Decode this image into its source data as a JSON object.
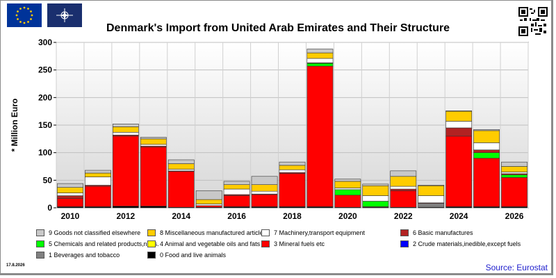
{
  "header": {
    "eu_flag": "eu-flag",
    "nato_flag": "nato-flag",
    "qr": "qr-code"
  },
  "footer": {
    "date": "17.8.2026",
    "source": "Source: Eurostat"
  },
  "chart_data": {
    "type": "bar",
    "stacked": true,
    "title": "Denmark's Import from United Arab Emirates and Their Structure",
    "ylabel": "* Million Euro",
    "xlabel": "",
    "ylim": [
      0,
      300
    ],
    "yticks": [
      0,
      50,
      100,
      150,
      200,
      250,
      300
    ],
    "grid": true,
    "legend_position": "bottom",
    "categories": [
      "2010",
      "2011",
      "2012",
      "2013",
      "2014",
      "2015",
      "2016",
      "2017",
      "2018",
      "2019",
      "2020",
      "2021",
      "2022",
      "2023",
      "2024",
      "2025",
      "2026"
    ],
    "xtick_labels": [
      "2010",
      "2012",
      "2014",
      "2016",
      "2018",
      "2020",
      "2022",
      "2024",
      "2026"
    ],
    "series": [
      {
        "name": "0 Food and live animals",
        "color": "#000000",
        "values": [
          2,
          2,
          3,
          3,
          1,
          1,
          2,
          2,
          2,
          2,
          1,
          1,
          1,
          1,
          2,
          2,
          2
        ]
      },
      {
        "name": "1 Beverages and tobacco",
        "color": "#808080",
        "values": [
          0,
          0,
          0,
          0,
          0,
          0,
          0,
          0,
          0,
          0,
          0,
          0,
          0,
          7,
          0,
          0,
          0
        ]
      },
      {
        "name": "2 Crude materials,inedible,except fuels",
        "color": "#0000ff",
        "values": [
          0,
          0,
          0,
          0,
          0,
          0,
          0,
          0,
          0,
          0,
          0,
          0,
          0,
          0,
          0,
          0,
          0
        ]
      },
      {
        "name": "3 Mineral fuels etc",
        "color": "#ff0000",
        "values": [
          15,
          37,
          127,
          107,
          65,
          3,
          20,
          22,
          60,
          255,
          22,
          1,
          30,
          0,
          128,
          88,
          53
        ]
      },
      {
        "name": "4 Animal and vegetable oils and fats",
        "color": "#ffff00",
        "values": [
          0,
          0,
          0,
          0,
          0,
          0,
          0,
          0,
          0,
          0,
          0,
          0,
          0,
          0,
          0,
          0,
          0
        ]
      },
      {
        "name": "5 Chemicals and related products,n.e.s.",
        "color": "#00ff00",
        "values": [
          0,
          0,
          0,
          0,
          0,
          0,
          0,
          0,
          0,
          5,
          10,
          10,
          0,
          0,
          0,
          10,
          5
        ]
      },
      {
        "name": "6 Basic manufactures",
        "color": "#b22222",
        "values": [
          5,
          2,
          2,
          2,
          1,
          0,
          2,
          1,
          2,
          1,
          0,
          0,
          3,
          1,
          15,
          5,
          2
        ]
      },
      {
        "name": "7 Machinery,transport equipment",
        "color": "#ffffff",
        "values": [
          5,
          15,
          5,
          3,
          3,
          3,
          10,
          5,
          5,
          8,
          3,
          10,
          5,
          13,
          12,
          13,
          3
        ]
      },
      {
        "name": "8 Miscellaneous manufactured articles",
        "color": "#ffcc00",
        "values": [
          10,
          7,
          10,
          10,
          10,
          8,
          8,
          12,
          8,
          10,
          12,
          18,
          18,
          18,
          18,
          22,
          10
        ]
      },
      {
        "name": "9 Goods not classified elsewhere",
        "color": "#c8c8c8",
        "values": [
          7,
          5,
          5,
          3,
          7,
          16,
          6,
          15,
          6,
          7,
          4,
          3,
          10,
          1,
          1,
          2,
          8
        ]
      }
    ]
  }
}
